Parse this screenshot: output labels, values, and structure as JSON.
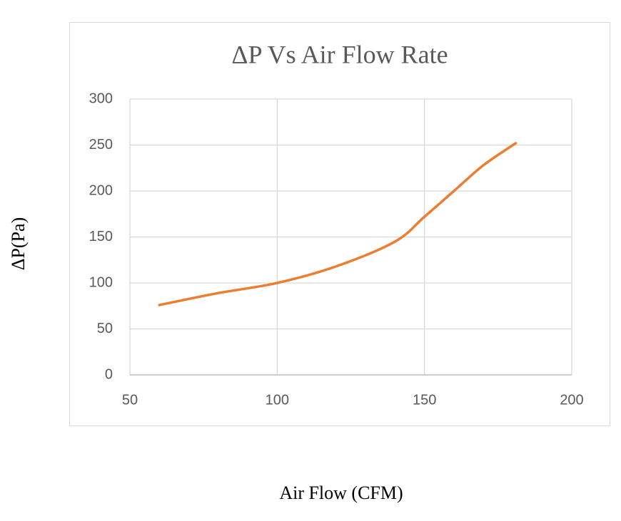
{
  "chart_data": {
    "type": "line",
    "title": "ΔP Vs Air Flow Rate",
    "x_label": "Air Flow (CFM)",
    "y_label": "ΔP(Pa)",
    "series": [
      {
        "name": "ΔP",
        "color": "#ed7d31",
        "x": [
          60,
          80,
          100,
          120,
          140,
          150,
          160,
          170,
          181
        ],
        "values": [
          76,
          89,
          100,
          118,
          145,
          172,
          200,
          228,
          252
        ]
      }
    ],
    "xlim": [
      50,
      200
    ],
    "xticks": [
      50,
      100,
      150,
      200
    ],
    "ylim": [
      0,
      300
    ],
    "yticks": [
      0,
      50,
      100,
      150,
      200,
      250,
      300
    ],
    "grid": true,
    "smooth": true
  }
}
